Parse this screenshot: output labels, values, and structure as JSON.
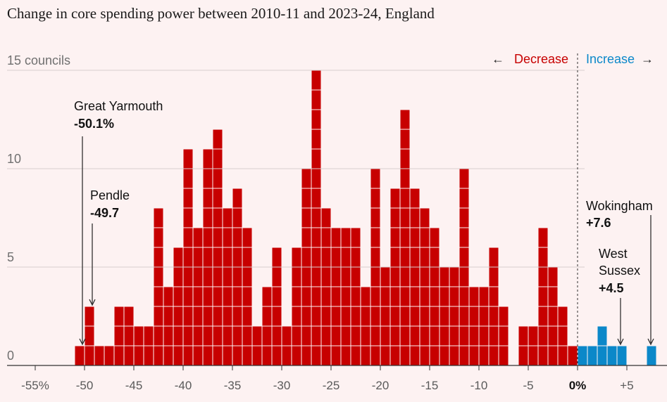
{
  "title": "Change in core spending power between 2010-11 and 2023-24, England",
  "colors": {
    "decrease": "#c70000",
    "increase": "#0b88c9",
    "background": "#fdf2f2"
  },
  "direction_labels": {
    "decrease": "Decrease",
    "increase": "Increase",
    "left_arrow": "←",
    "right_arrow": "→"
  },
  "chart_data": {
    "type": "bar",
    "title": "Change in core spending power between 2010-11 and 2023-24, England",
    "xlabel": "",
    "ylabel": "",
    "bin_width": 1,
    "bin_starts": [
      -51,
      -50,
      -49,
      -48,
      -47,
      -46,
      -45,
      -44,
      -43,
      -42,
      -41,
      -40,
      -39,
      -38,
      -37,
      -36,
      -35,
      -34,
      -33,
      -32,
      -31,
      -30,
      -29,
      -28,
      -27,
      -26,
      -25,
      -24,
      -23,
      -22,
      -21,
      -20,
      -19,
      -18,
      -17,
      -16,
      -15,
      -14,
      -13,
      -12,
      -11,
      -10,
      -9,
      -8,
      -7,
      -6,
      -5,
      -4,
      -3,
      -2,
      -1,
      0,
      1,
      2,
      3,
      4,
      5,
      6,
      7
    ],
    "counts": [
      1,
      3,
      1,
      1,
      3,
      3,
      2,
      2,
      8,
      4,
      6,
      11,
      7,
      11,
      12,
      8,
      9,
      7,
      2,
      4,
      6,
      2,
      6,
      10,
      15,
      8,
      7,
      7,
      7,
      4,
      10,
      5,
      9,
      13,
      9,
      8,
      7,
      5,
      5,
      10,
      4,
      4,
      6,
      3,
      0,
      2,
      2,
      7,
      5,
      3,
      1,
      1,
      1,
      2,
      1,
      1,
      0,
      0,
      1
    ],
    "xlim": [
      -57,
      8.5
    ],
    "ylim": [
      0,
      15
    ],
    "x_ticks": [
      {
        "value": -55,
        "label": "-55%"
      },
      {
        "value": -50,
        "label": "-50"
      },
      {
        "value": -45,
        "label": "-45"
      },
      {
        "value": -40,
        "label": "-40"
      },
      {
        "value": -35,
        "label": "-35"
      },
      {
        "value": -30,
        "label": "-30"
      },
      {
        "value": -25,
        "label": "-25"
      },
      {
        "value": -20,
        "label": "-20"
      },
      {
        "value": -15,
        "label": "-15"
      },
      {
        "value": -10,
        "label": "-10"
      },
      {
        "value": -5,
        "label": "-5"
      },
      {
        "value": 0,
        "label": "0%",
        "bold": true
      },
      {
        "value": 5,
        "label": "+5"
      }
    ],
    "y_ticks": [
      {
        "value": 15,
        "label": "15 councils"
      },
      {
        "value": 10,
        "label": "10"
      },
      {
        "value": 5,
        "label": "5"
      },
      {
        "value": 0,
        "label": "0"
      }
    ],
    "grid": true,
    "reference_line": {
      "value": 0,
      "style": "dashed"
    },
    "annotations": [
      {
        "name": "Great Yarmouth",
        "value": "-50.1%",
        "x": -50.1
      },
      {
        "name": "Pendle",
        "value": "-49.7",
        "x": -49.7
      },
      {
        "name": "Wokingham",
        "value": "+7.6",
        "x": 7.6
      },
      {
        "name_lines": [
          "West",
          "Sussex"
        ],
        "value": "+4.5",
        "x": 4.5
      }
    ]
  }
}
